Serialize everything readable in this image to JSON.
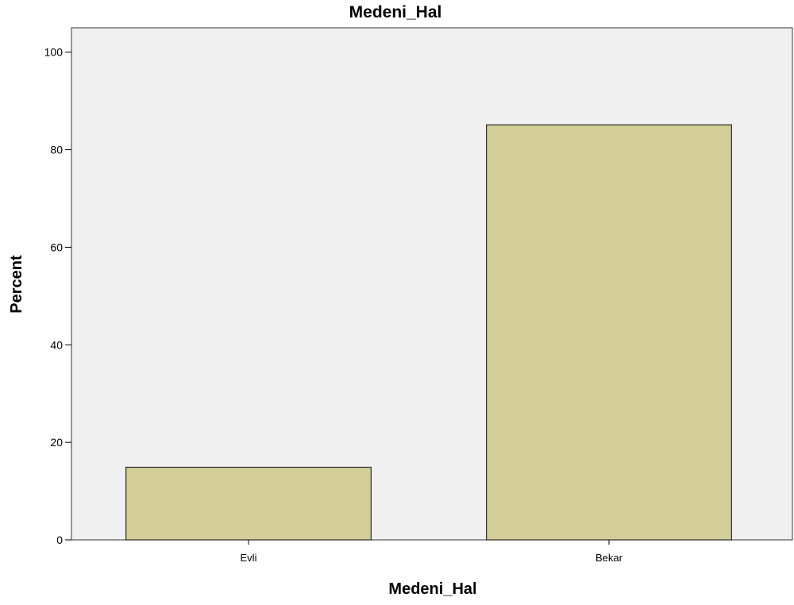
{
  "chart_data": {
    "type": "bar",
    "title": "Medeni_Hal",
    "xlabel": "Medeni_Hal",
    "ylabel": "Percent",
    "categories": [
      "Evli",
      "Bekar"
    ],
    "values": [
      14.9,
      85.1
    ],
    "ylim": [
      0,
      105
    ],
    "yticks": [
      0,
      20,
      40,
      60,
      80,
      100
    ],
    "ytick_labels": [
      "0",
      "20",
      "40",
      "60",
      "80",
      "100"
    ],
    "grid": false,
    "legend": "none",
    "colors": {
      "plot_background": "#f0f0f0",
      "bar_fill": "#d3ce97",
      "bar_stroke": "#2b2b2b",
      "frame": "#333333"
    }
  }
}
